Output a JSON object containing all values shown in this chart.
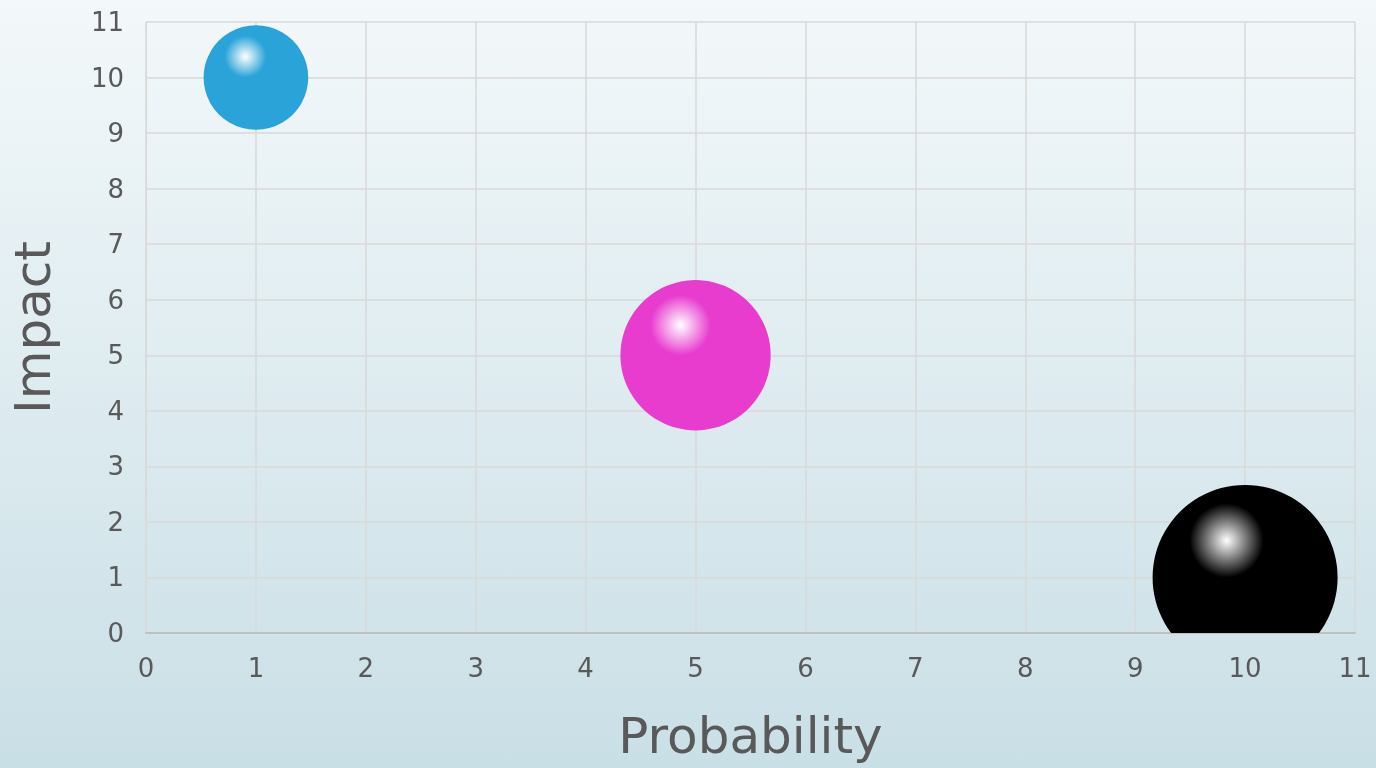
{
  "chart_data": {
    "type": "bubble",
    "xlabel": "Probability",
    "ylabel": "Impact",
    "x": [
      1,
      5,
      10
    ],
    "values": [
      10,
      5,
      1
    ],
    "sizes": [
      0.32,
      0.66,
      1
    ],
    "colors": [
      "#29a3d8",
      "#e83ccf",
      "#000000"
    ],
    "xlim": [
      0,
      11
    ],
    "xticks": [
      0,
      1,
      2,
      3,
      4,
      5,
      6,
      7,
      8,
      9,
      10,
      11
    ],
    "ylim": [
      0,
      11
    ],
    "yticks": [
      0,
      1,
      2,
      3,
      4,
      5,
      6,
      7,
      8,
      9,
      10,
      11
    ],
    "grid": true
  }
}
